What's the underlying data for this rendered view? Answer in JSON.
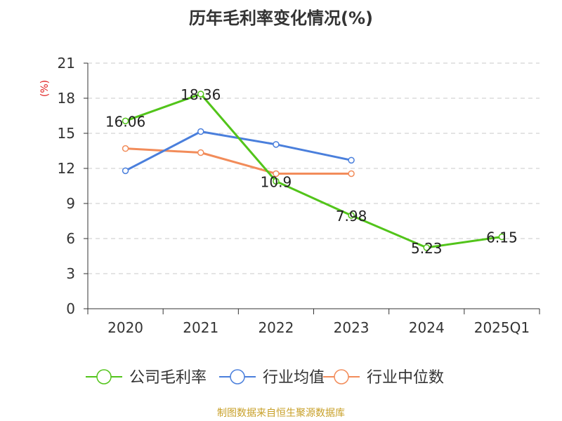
{
  "title": "历年毛利率变化情况(%)",
  "source": "制图数据来自恒生聚源数据库",
  "chart_data": {
    "type": "line",
    "title": "历年毛利率变化情况(%)",
    "ylabel": "(%)",
    "xlabel": "",
    "categories": [
      "2020",
      "2021",
      "2022",
      "2023",
      "2024",
      "2025Q1"
    ],
    "ylim": [
      0,
      21
    ],
    "yticks": [
      0,
      3,
      6,
      9,
      12,
      15,
      18,
      21
    ],
    "grid": true,
    "legend_position": "bottom",
    "series": [
      {
        "name": "公司毛利率",
        "color": "#52c41a",
        "values": [
          16.06,
          18.36,
          10.9,
          7.98,
          5.23,
          6.15
        ],
        "labels": [
          "16.06",
          "18.36",
          "10.9",
          "7.98",
          "5.23",
          "6.15"
        ]
      },
      {
        "name": "行业均值",
        "color": "#4a7fdc",
        "values": [
          11.8,
          15.15,
          14.05,
          12.7,
          null,
          null
        ]
      },
      {
        "name": "行业中位数",
        "color": "#f28c5a",
        "values": [
          13.7,
          13.35,
          11.55,
          11.55,
          null,
          null
        ]
      }
    ]
  }
}
